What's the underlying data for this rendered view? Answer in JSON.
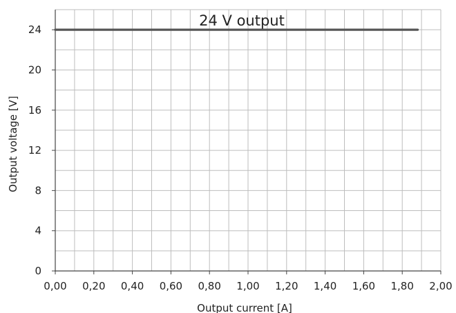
{
  "chart_data": {
    "type": "line",
    "title": "24 V output",
    "xlabel": "Output current [A]",
    "ylabel": "Output voltage [V]",
    "xlim": [
      0,
      2.0
    ],
    "ylim": [
      0,
      26
    ],
    "x_ticks": [
      0.0,
      0.2,
      0.4,
      0.6,
      0.8,
      1.0,
      1.2,
      1.4,
      1.6,
      1.8,
      2.0
    ],
    "x_tick_labels": [
      "0,00",
      "0,20",
      "0,40",
      "0,60",
      "0,80",
      "1,00",
      "1,20",
      "1,40",
      "1,60",
      "1,80",
      "2,00"
    ],
    "y_ticks": [
      0,
      4,
      8,
      12,
      16,
      20,
      24
    ],
    "y_tick_labels": [
      "0",
      "4",
      "8",
      "12",
      "16",
      "20",
      "24"
    ],
    "x_minor_step": 0.1,
    "y_minor_step": 2,
    "grid": true,
    "series": [
      {
        "x": [
          0.0,
          1.88
        ],
        "y": [
          24.0,
          24.0
        ],
        "color": "#555555"
      }
    ]
  }
}
